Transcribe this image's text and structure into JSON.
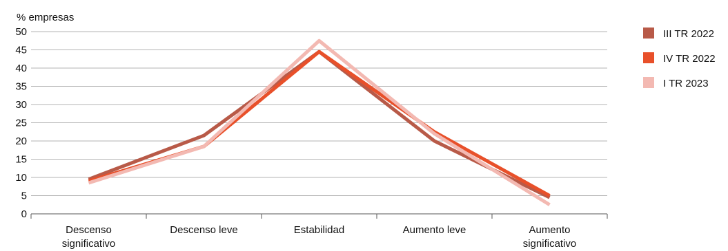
{
  "chart_data": {
    "type": "line",
    "ylabel": "% empresas",
    "ylim": [
      0,
      50
    ],
    "yticks": [
      0,
      5,
      10,
      15,
      20,
      25,
      30,
      35,
      40,
      45,
      50
    ],
    "grid": true,
    "legend_position": "right",
    "categories": [
      [
        "Descenso",
        "significativo"
      ],
      [
        "Descenso leve"
      ],
      [
        "Estabilidad"
      ],
      [
        "Aumento leve"
      ],
      [
        "Aumento",
        "significativo"
      ]
    ],
    "series": [
      {
        "name": "III TR 2022",
        "color": "#b85a48",
        "values": [
          9.5,
          21.5,
          44.5,
          20.0,
          4.5
        ]
      },
      {
        "name": "IV TR 2022",
        "color": "#e8502a",
        "values": [
          9.0,
          18.5,
          44.5,
          22.5,
          5.0
        ]
      },
      {
        "name": "I TR 2023",
        "color": "#f3b9b2",
        "values": [
          8.5,
          18.5,
          47.5,
          22.0,
          2.5
        ]
      }
    ]
  }
}
